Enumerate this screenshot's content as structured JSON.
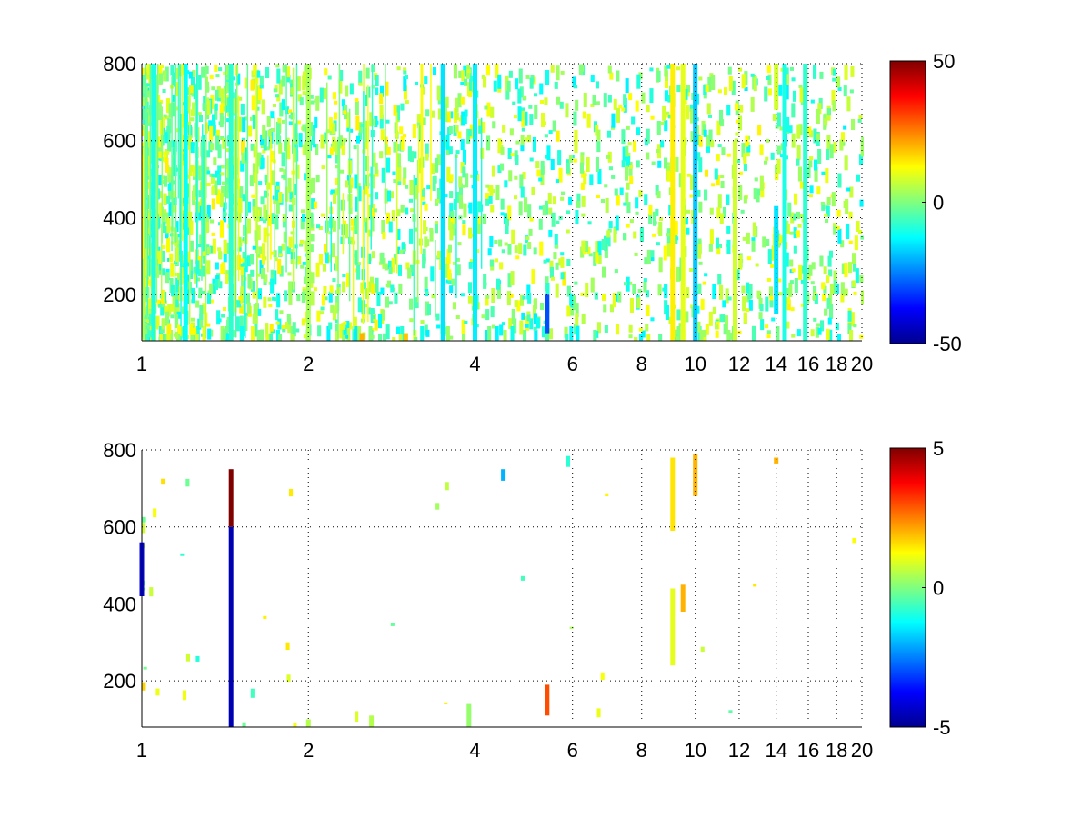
{
  "colormap": {
    "name": "jet",
    "stops": [
      "#00008f",
      "#0000ff",
      "#00ffff",
      "#ffff00",
      "#ff0000",
      "#800000"
    ]
  },
  "chart_data": [
    {
      "type": "heatmap",
      "title": "",
      "xlabel": "",
      "ylabel": "",
      "x_scale": "log",
      "xlim": [
        1,
        20
      ],
      "ylim": [
        80,
        800
      ],
      "x_ticks": [
        1,
        2,
        4,
        6,
        8,
        10,
        12,
        14,
        16,
        18,
        20
      ],
      "x_tick_labels": [
        "1",
        "2",
        "4",
        "6",
        "8",
        "10",
        "12",
        "14",
        "16",
        "18",
        "20"
      ],
      "y_ticks": [
        200,
        400,
        600,
        800
      ],
      "y_tick_labels": [
        "200",
        "400",
        "600",
        "800"
      ],
      "grid": true,
      "colorbar": {
        "range": [
          -50,
          50
        ],
        "ticks": [
          50,
          0,
          -50
        ],
        "tick_labels": [
          "50",
          "0",
          "-50"
        ]
      },
      "value_range": [
        -50,
        50
      ],
      "background": "NaN (white)",
      "stripes": [
        {
          "x": 1.05,
          "y": [
            80,
            800
          ],
          "value": -10
        },
        {
          "x": 1.2,
          "y": [
            80,
            800
          ],
          "value": -12
        },
        {
          "x": 1.45,
          "y": [
            80,
            800
          ],
          "value": -8
        },
        {
          "x": 2.0,
          "y": [
            80,
            800
          ],
          "value": 4
        },
        {
          "x": 3.5,
          "y": [
            80,
            800
          ],
          "value": -15
        },
        {
          "x": 4.0,
          "y": [
            80,
            800
          ],
          "value": -14
        },
        {
          "x": 5.4,
          "y": [
            100,
            200
          ],
          "value": -30
        },
        {
          "x": 9.1,
          "y": [
            80,
            800
          ],
          "value": 14
        },
        {
          "x": 9.5,
          "y": [
            80,
            800
          ],
          "value": 10
        },
        {
          "x": 10.0,
          "y": [
            80,
            800
          ],
          "value": -18
        },
        {
          "x": 11.8,
          "y": [
            80,
            600
          ],
          "value": 8
        },
        {
          "x": 14.0,
          "y": [
            150,
            430
          ],
          "value": -15
        },
        {
          "x": 14.0,
          "y": [
            680,
            800
          ],
          "value": 8
        },
        {
          "x": 14.5,
          "y": [
            80,
            800
          ],
          "value": -10
        },
        {
          "x": 15.8,
          "y": [
            80,
            800
          ],
          "value": -8
        },
        {
          "x": 2.5,
          "y": [
            80,
            100
          ],
          "value": 20
        },
        {
          "x": 3.0,
          "y": [
            80,
            100
          ],
          "value": 18
        }
      ]
    },
    {
      "type": "heatmap",
      "title": "",
      "xlabel": "",
      "ylabel": "",
      "x_scale": "log",
      "xlim": [
        1,
        20
      ],
      "ylim": [
        80,
        800
      ],
      "x_ticks": [
        1,
        2,
        4,
        6,
        8,
        10,
        12,
        14,
        16,
        18,
        20
      ],
      "x_tick_labels": [
        "1",
        "2",
        "4",
        "6",
        "8",
        "10",
        "12",
        "14",
        "16",
        "18",
        "20"
      ],
      "y_ticks": [
        200,
        400,
        600,
        800
      ],
      "y_tick_labels": [
        "200",
        "400",
        "600",
        "800"
      ],
      "grid": true,
      "colorbar": {
        "range": [
          -5,
          5
        ],
        "ticks": [
          5,
          0,
          -5
        ],
        "tick_labels": [
          "5",
          "0",
          "-5"
        ]
      },
      "value_range": [
        -5,
        5
      ],
      "background": "NaN (white)",
      "stripes": [
        {
          "x": 1.45,
          "y": [
            600,
            750
          ],
          "value": 5
        },
        {
          "x": 1.45,
          "y": [
            80,
            600
          ],
          "value": -4.5
        },
        {
          "x": 5.4,
          "y": [
            110,
            190
          ],
          "value": 3
        },
        {
          "x": 9.1,
          "y": [
            590,
            780
          ],
          "value": 1.5
        },
        {
          "x": 9.1,
          "y": [
            240,
            440
          ],
          "value": 1
        },
        {
          "x": 9.5,
          "y": [
            380,
            450
          ],
          "value": 2
        },
        {
          "x": 10.0,
          "y": [
            680,
            790
          ],
          "value": 2
        },
        {
          "x": 14.0,
          "y": [
            765,
            780
          ],
          "value": 2
        },
        {
          "x": 4.5,
          "y": [
            720,
            750
          ],
          "value": -2
        },
        {
          "x": 2.0,
          "y": [
            80,
            100
          ],
          "value": 0.5
        },
        {
          "x": 2.6,
          "y": [
            80,
            110
          ],
          "value": 0.5
        },
        {
          "x": 3.9,
          "y": [
            80,
            140
          ],
          "value": 0.2
        },
        {
          "x": 1.0,
          "y": [
            420,
            560
          ],
          "value": -4
        }
      ]
    }
  ]
}
